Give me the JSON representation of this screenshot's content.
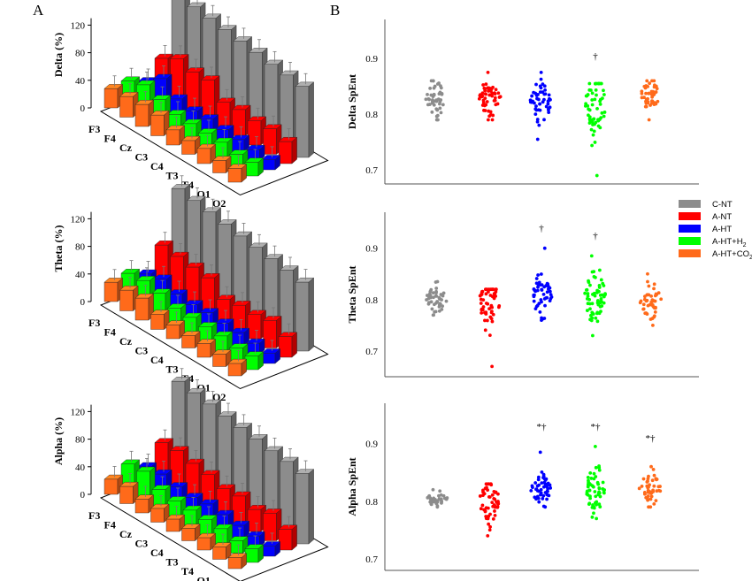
{
  "panels": {
    "left_letter": "A",
    "right_letter": "B"
  },
  "colors": {
    "C-NT": "#8c8c8c",
    "A-NT": "#ff0000",
    "A-HT": "#0000ff",
    "A-HT+H2": "#00ff00",
    "A-HT+CO2": "#ff6a1a"
  },
  "chart_data": [
    {
      "type": "bar",
      "subtype": "3d-grouped-bar",
      "ylabel": "Delta (%)",
      "yticks": [
        0,
        40,
        80,
        120
      ],
      "ylim": [
        0,
        130
      ],
      "categories": [
        "F3",
        "F4",
        "Cz",
        "C3",
        "C4",
        "T3",
        "T4",
        "O1",
        "O2"
      ],
      "series": [
        {
          "name": "C-NT",
          "values": [
            128,
            124,
            121,
            118,
            115,
            112,
            108,
            106,
            103
          ]
        },
        {
          "name": "A-NT",
          "values": [
            45,
            58,
            52,
            54,
            35,
            38,
            35,
            37,
            32
          ]
        },
        {
          "name": "A-HT",
          "values": [
            20,
            38,
            22,
            18,
            20,
            18,
            17,
            16,
            15
          ]
        },
        {
          "name": "A-HT+H2",
          "values": [
            30,
            38,
            30,
            22,
            22,
            22,
            22,
            18,
            20
          ]
        },
        {
          "name": "A-HT+CO2",
          "values": [
            28,
            30,
            32,
            30,
            22,
            20,
            22,
            18,
            20
          ]
        }
      ],
      "legend": "none"
    },
    {
      "type": "bar",
      "subtype": "3d-grouped-bar",
      "ylabel": "Theta (%)",
      "yticks": [
        0,
        40,
        80,
        120
      ],
      "ylim": [
        0,
        130
      ],
      "categories": [
        "F3",
        "F4",
        "Cz",
        "C3",
        "C4",
        "T3",
        "T4",
        "O1",
        "O2"
      ],
      "series": [
        {
          "name": "C-NT",
          "values": [
            128,
            124,
            121,
            117,
            113,
            110,
            107,
            104,
            100
          ]
        },
        {
          "name": "A-NT",
          "values": [
            55,
            52,
            50,
            48,
            30,
            35,
            35,
            40,
            30
          ]
        },
        {
          "name": "A-HT",
          "values": [
            22,
            28,
            20,
            18,
            20,
            18,
            18,
            16,
            15
          ]
        },
        {
          "name": "A-HT+H2",
          "values": [
            32,
            35,
            30,
            22,
            22,
            22,
            22,
            18,
            20
          ]
        },
        {
          "name": "A-HT+CO2",
          "values": [
            28,
            30,
            32,
            22,
            20,
            18,
            20,
            18,
            18
          ]
        }
      ],
      "legend": "none"
    },
    {
      "type": "bar",
      "subtype": "3d-grouped-bar",
      "ylabel": "Alpha (%)",
      "yticks": [
        0,
        40,
        80,
        120
      ],
      "ylim": [
        0,
        130
      ],
      "categories": [
        "F3",
        "F4",
        "Cz",
        "C3",
        "C4",
        "T3",
        "T4",
        "O1",
        "O2"
      ],
      "series": [
        {
          "name": "C-NT",
          "values": [
            128,
            125,
            122,
            118,
            115,
            112,
            108,
            106,
            102
          ]
        },
        {
          "name": "A-NT",
          "values": [
            48,
            50,
            45,
            42,
            35,
            38,
            32,
            40,
            30
          ]
        },
        {
          "name": "A-HT",
          "values": [
            22,
            25,
            20,
            18,
            22,
            20,
            18,
            16,
            15
          ]
        },
        {
          "name": "A-HT+H2",
          "values": [
            35,
            38,
            25,
            22,
            22,
            22,
            22,
            18,
            20
          ]
        },
        {
          "name": "A-HT+CO2",
          "values": [
            22,
            25,
            20,
            20,
            18,
            18,
            18,
            18,
            16
          ]
        }
      ],
      "legend": "none"
    },
    {
      "type": "scatter",
      "subtype": "strip",
      "ylabel": "Delta SpEnt",
      "yticks": [
        0.7,
        0.8,
        0.9
      ],
      "ylim": [
        0.675,
        0.97
      ],
      "categories": [
        "C-NT",
        "A-NT",
        "A-HT",
        "A-HT+H2",
        "A-HT+CO2"
      ],
      "groups": [
        {
          "name": "C-NT",
          "center": 0.83,
          "spread": 0.018,
          "min": 0.79,
          "max": 0.86,
          "n": 45
        },
        {
          "name": "A-NT",
          "center": 0.83,
          "spread": 0.018,
          "min": 0.79,
          "max": 0.875,
          "n": 55
        },
        {
          "name": "A-HT",
          "center": 0.825,
          "spread": 0.02,
          "min": 0.755,
          "max": 0.875,
          "n": 50
        },
        {
          "name": "A-HT+H2",
          "center": 0.815,
          "spread": 0.03,
          "min": 0.69,
          "max": 0.855,
          "n": 60
        },
        {
          "name": "A-HT+CO2",
          "center": 0.835,
          "spread": 0.012,
          "min": 0.79,
          "max": 0.86,
          "n": 45
        }
      ],
      "annotations": [
        {
          "group": "A-HT+H2",
          "text": "†",
          "y": 0.905
        }
      ]
    },
    {
      "type": "scatter",
      "subtype": "strip",
      "ylabel": "Theta SpEnt",
      "yticks": [
        0.7,
        0.8,
        0.9
      ],
      "ylim": [
        0.65,
        0.97
      ],
      "categories": [
        "C-NT",
        "A-NT",
        "A-HT",
        "A-HT+H2",
        "A-HT+CO2"
      ],
      "groups": [
        {
          "name": "C-NT",
          "center": 0.8,
          "spread": 0.013,
          "min": 0.77,
          "max": 0.835,
          "n": 45
        },
        {
          "name": "A-NT",
          "center": 0.795,
          "spread": 0.022,
          "min": 0.67,
          "max": 0.82,
          "n": 55
        },
        {
          "name": "A-HT",
          "center": 0.805,
          "spread": 0.022,
          "min": 0.76,
          "max": 0.9,
          "n": 50
        },
        {
          "name": "A-HT+H2",
          "center": 0.805,
          "spread": 0.03,
          "min": 0.73,
          "max": 0.885,
          "n": 60
        },
        {
          "name": "A-HT+CO2",
          "center": 0.8,
          "spread": 0.018,
          "min": 0.75,
          "max": 0.85,
          "n": 45
        }
      ],
      "annotations": [
        {
          "group": "A-HT",
          "text": "†",
          "y": 0.94
        },
        {
          "group": "A-HT+H2",
          "text": "†",
          "y": 0.925
        }
      ],
      "legend": {
        "placement": "right",
        "entries": [
          {
            "series": "C-NT",
            "label": "C-NT"
          },
          {
            "series": "A-NT",
            "label": "A-NT"
          },
          {
            "series": "A-HT",
            "label": "A-HT"
          },
          {
            "series": "A-HT+H2",
            "label": "A-HT+H",
            "sub": "2"
          },
          {
            "series": "A-HT+CO2",
            "label": "A-HT+CO",
            "sub": "2"
          }
        ]
      }
    },
    {
      "type": "scatter",
      "subtype": "strip",
      "ylabel": "Alpha SpEnt",
      "yticks": [
        0.7,
        0.8,
        0.9
      ],
      "ylim": [
        0.68,
        0.97
      ],
      "categories": [
        "C-NT",
        "A-NT",
        "A-HT",
        "A-HT+H2",
        "A-HT+CO2"
      ],
      "groups": [
        {
          "name": "C-NT",
          "center": 0.805,
          "spread": 0.006,
          "min": 0.79,
          "max": 0.82,
          "n": 40
        },
        {
          "name": "A-NT",
          "center": 0.8,
          "spread": 0.02,
          "min": 0.74,
          "max": 0.83,
          "n": 55
        },
        {
          "name": "A-HT",
          "center": 0.82,
          "spread": 0.013,
          "min": 0.79,
          "max": 0.885,
          "n": 50
        },
        {
          "name": "A-HT+H2",
          "center": 0.82,
          "spread": 0.02,
          "min": 0.77,
          "max": 0.895,
          "n": 60
        },
        {
          "name": "A-HT+CO2",
          "center": 0.822,
          "spread": 0.014,
          "min": 0.79,
          "max": 0.86,
          "n": 45
        }
      ],
      "annotations": [
        {
          "group": "A-HT",
          "text": "*†",
          "y": 0.93
        },
        {
          "group": "A-HT+H2",
          "text": "*†",
          "y": 0.93
        },
        {
          "group": "A-HT+CO2",
          "text": "*†",
          "y": 0.91
        }
      ]
    }
  ]
}
